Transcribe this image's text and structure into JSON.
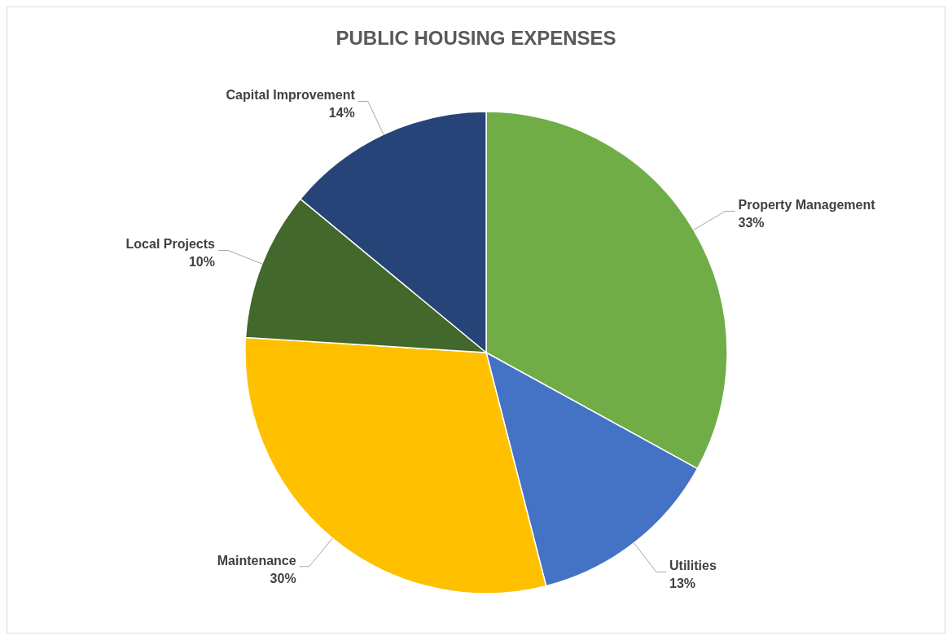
{
  "chart_data": {
    "type": "pie",
    "title": "PUBLIC HOUSING EXPENSES",
    "categories": [
      "Property Management",
      "Utilities",
      "Maintenance",
      "Local Projects",
      "Capital Improvement"
    ],
    "values": [
      33,
      13,
      30,
      10,
      14
    ],
    "value_labels": [
      "33%",
      "13%",
      "30%",
      "10%",
      "14%"
    ],
    "colors": [
      "#70ad47",
      "#4472c4",
      "#ffc000",
      "#43682b",
      "#264478"
    ],
    "legend": false
  }
}
